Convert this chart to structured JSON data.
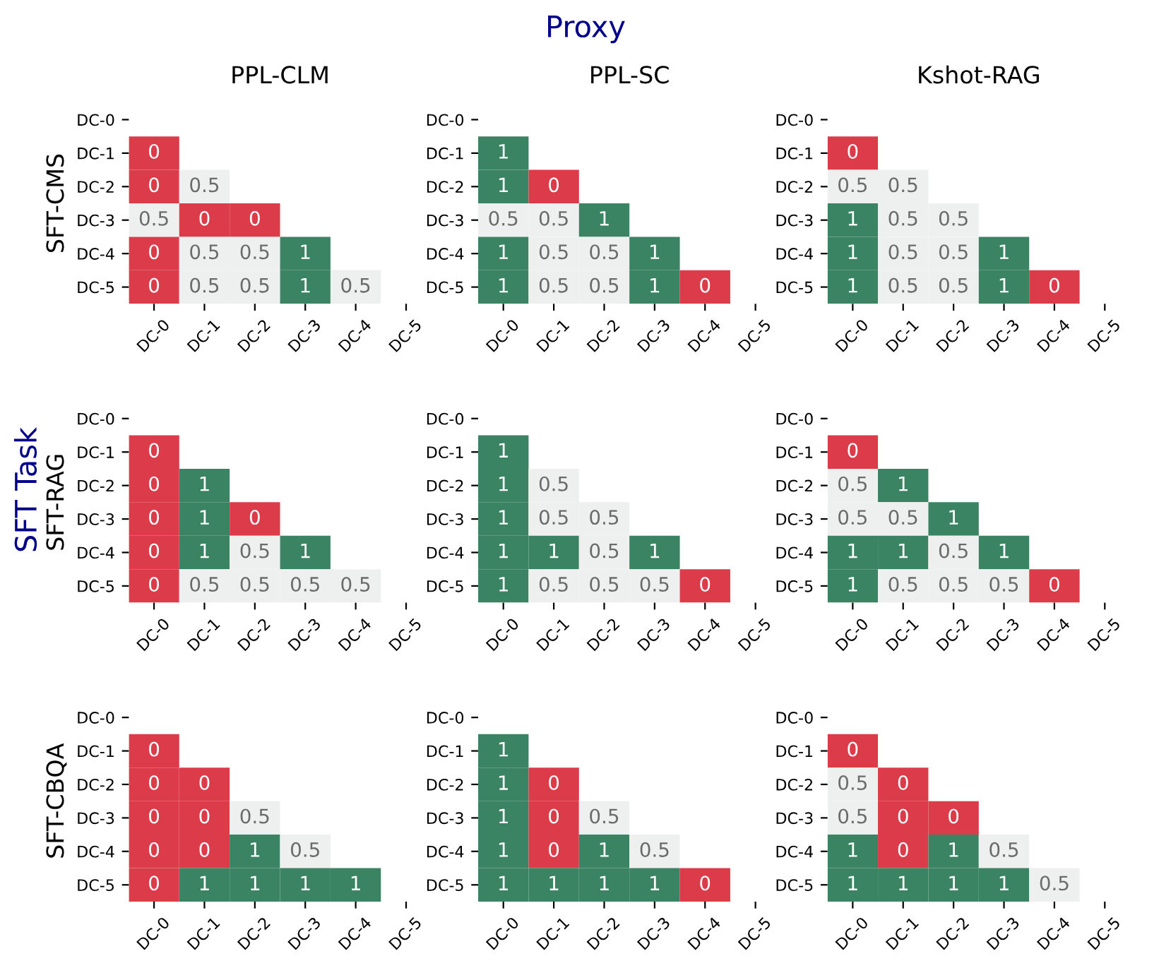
{
  "chart_data": [
    {
      "type": "heatmap",
      "title": "PPL-CLM",
      "ylabel": "SFT-CMS",
      "annotations": [
        "Proxy",
        "SFT Task"
      ],
      "data_labels": true,
      "colors": [
        "#dc3c4a",
        "#eef0ef",
        "#3b8463"
      ],
      "categories": [
        "DC-0",
        "DC-1",
        "DC-2",
        "DC-3",
        "DC-4",
        "DC-5"
      ],
      "y_categories": [
        "DC-0",
        "DC-1",
        "DC-2",
        "DC-3",
        "DC-4",
        "DC-5"
      ],
      "cells": [
        [
          null,
          null,
          null,
          null,
          null,
          null
        ],
        [
          0,
          null,
          null,
          null,
          null,
          null
        ],
        [
          0,
          0.5,
          null,
          null,
          null,
          null
        ],
        [
          0.5,
          0,
          0,
          null,
          null,
          null
        ],
        [
          0,
          0.5,
          0.5,
          1,
          null,
          null
        ],
        [
          0,
          0.5,
          0.5,
          1,
          0.5,
          null
        ]
      ]
    },
    {
      "type": "heatmap",
      "title": "PPL-SC",
      "data_labels": true,
      "colors": [
        "#dc3c4a",
        "#eef0ef",
        "#3b8463"
      ],
      "categories": [
        "DC-0",
        "DC-1",
        "DC-2",
        "DC-3",
        "DC-4",
        "DC-5"
      ],
      "y_categories": [
        "DC-0",
        "DC-1",
        "DC-2",
        "DC-3",
        "DC-4",
        "DC-5"
      ],
      "cells": [
        [
          null,
          null,
          null,
          null,
          null,
          null
        ],
        [
          1,
          null,
          null,
          null,
          null,
          null
        ],
        [
          1,
          0,
          null,
          null,
          null,
          null
        ],
        [
          0.5,
          0.5,
          1,
          null,
          null,
          null
        ],
        [
          1,
          0.5,
          0.5,
          1,
          null,
          null
        ],
        [
          1,
          0.5,
          0.5,
          1,
          0,
          null
        ]
      ]
    },
    {
      "type": "heatmap",
      "title": "Kshot-RAG",
      "data_labels": true,
      "colors": [
        "#dc3c4a",
        "#eef0ef",
        "#3b8463"
      ],
      "categories": [
        "DC-0",
        "DC-1",
        "DC-2",
        "DC-3",
        "DC-4",
        "DC-5"
      ],
      "y_categories": [
        "DC-0",
        "DC-1",
        "DC-2",
        "DC-3",
        "DC-4",
        "DC-5"
      ],
      "cells": [
        [
          null,
          null,
          null,
          null,
          null,
          null
        ],
        [
          0,
          null,
          null,
          null,
          null,
          null
        ],
        [
          0.5,
          0.5,
          null,
          null,
          null,
          null
        ],
        [
          1,
          0.5,
          0.5,
          null,
          null,
          null
        ],
        [
          1,
          0.5,
          0.5,
          1,
          null,
          null
        ],
        [
          1,
          0.5,
          0.5,
          1,
          0,
          null
        ]
      ]
    },
    {
      "type": "heatmap",
      "ylabel": "SFT-RAG",
      "data_labels": true,
      "colors": [
        "#dc3c4a",
        "#eef0ef",
        "#3b8463"
      ],
      "categories": [
        "DC-0",
        "DC-1",
        "DC-2",
        "DC-3",
        "DC-4",
        "DC-5"
      ],
      "y_categories": [
        "DC-0",
        "DC-1",
        "DC-2",
        "DC-3",
        "DC-4",
        "DC-5"
      ],
      "cells": [
        [
          null,
          null,
          null,
          null,
          null,
          null
        ],
        [
          0,
          null,
          null,
          null,
          null,
          null
        ],
        [
          0,
          1,
          null,
          null,
          null,
          null
        ],
        [
          0,
          1,
          0,
          null,
          null,
          null
        ],
        [
          0,
          1,
          0.5,
          1,
          null,
          null
        ],
        [
          0,
          0.5,
          0.5,
          0.5,
          0.5,
          null
        ]
      ]
    },
    {
      "type": "heatmap",
      "data_labels": true,
      "colors": [
        "#dc3c4a",
        "#eef0ef",
        "#3b8463"
      ],
      "categories": [
        "DC-0",
        "DC-1",
        "DC-2",
        "DC-3",
        "DC-4",
        "DC-5"
      ],
      "y_categories": [
        "DC-0",
        "DC-1",
        "DC-2",
        "DC-3",
        "DC-4",
        "DC-5"
      ],
      "cells": [
        [
          null,
          null,
          null,
          null,
          null,
          null
        ],
        [
          1,
          null,
          null,
          null,
          null,
          null
        ],
        [
          1,
          0.5,
          null,
          null,
          null,
          null
        ],
        [
          1,
          0.5,
          0.5,
          null,
          null,
          null
        ],
        [
          1,
          1,
          0.5,
          1,
          null,
          null
        ],
        [
          1,
          0.5,
          0.5,
          0.5,
          0,
          null
        ]
      ]
    },
    {
      "type": "heatmap",
      "data_labels": true,
      "colors": [
        "#dc3c4a",
        "#eef0ef",
        "#3b8463"
      ],
      "categories": [
        "DC-0",
        "DC-1",
        "DC-2",
        "DC-3",
        "DC-4",
        "DC-5"
      ],
      "y_categories": [
        "DC-0",
        "DC-1",
        "DC-2",
        "DC-3",
        "DC-4",
        "DC-5"
      ],
      "cells": [
        [
          null,
          null,
          null,
          null,
          null,
          null
        ],
        [
          0,
          null,
          null,
          null,
          null,
          null
        ],
        [
          0.5,
          1,
          null,
          null,
          null,
          null
        ],
        [
          0.5,
          0.5,
          1,
          null,
          null,
          null
        ],
        [
          1,
          1,
          0.5,
          1,
          null,
          null
        ],
        [
          1,
          0.5,
          0.5,
          0.5,
          0,
          null
        ]
      ]
    },
    {
      "type": "heatmap",
      "ylabel": "SFT-CBQA",
      "data_labels": true,
      "colors": [
        "#dc3c4a",
        "#eef0ef",
        "#3b8463"
      ],
      "categories": [
        "DC-0",
        "DC-1",
        "DC-2",
        "DC-3",
        "DC-4",
        "DC-5"
      ],
      "y_categories": [
        "DC-0",
        "DC-1",
        "DC-2",
        "DC-3",
        "DC-4",
        "DC-5"
      ],
      "cells": [
        [
          null,
          null,
          null,
          null,
          null,
          null
        ],
        [
          0,
          null,
          null,
          null,
          null,
          null
        ],
        [
          0,
          0,
          null,
          null,
          null,
          null
        ],
        [
          0,
          0,
          0.5,
          null,
          null,
          null
        ],
        [
          0,
          0,
          1,
          0.5,
          null,
          null
        ],
        [
          0,
          1,
          1,
          1,
          1,
          null
        ]
      ]
    },
    {
      "type": "heatmap",
      "data_labels": true,
      "colors": [
        "#dc3c4a",
        "#eef0ef",
        "#3b8463"
      ],
      "categories": [
        "DC-0",
        "DC-1",
        "DC-2",
        "DC-3",
        "DC-4",
        "DC-5"
      ],
      "y_categories": [
        "DC-0",
        "DC-1",
        "DC-2",
        "DC-3",
        "DC-4",
        "DC-5"
      ],
      "cells": [
        [
          null,
          null,
          null,
          null,
          null,
          null
        ],
        [
          1,
          null,
          null,
          null,
          null,
          null
        ],
        [
          1,
          0,
          null,
          null,
          null,
          null
        ],
        [
          1,
          0,
          0.5,
          null,
          null,
          null
        ],
        [
          1,
          0,
          1,
          0.5,
          null,
          null
        ],
        [
          1,
          1,
          1,
          1,
          0,
          null
        ]
      ]
    },
    {
      "type": "heatmap",
      "data_labels": true,
      "colors": [
        "#dc3c4a",
        "#eef0ef",
        "#3b8463"
      ],
      "categories": [
        "DC-0",
        "DC-1",
        "DC-2",
        "DC-3",
        "DC-4",
        "DC-5"
      ],
      "y_categories": [
        "DC-0",
        "DC-1",
        "DC-2",
        "DC-3",
        "DC-4",
        "DC-5"
      ],
      "cells": [
        [
          null,
          null,
          null,
          null,
          null,
          null
        ],
        [
          0,
          null,
          null,
          null,
          null,
          null
        ],
        [
          0.5,
          0,
          null,
          null,
          null,
          null
        ],
        [
          0.5,
          0,
          0,
          null,
          null,
          null
        ],
        [
          1,
          0,
          1,
          0.5,
          null,
          null
        ],
        [
          1,
          1,
          1,
          1,
          0.5,
          null
        ]
      ]
    }
  ]
}
